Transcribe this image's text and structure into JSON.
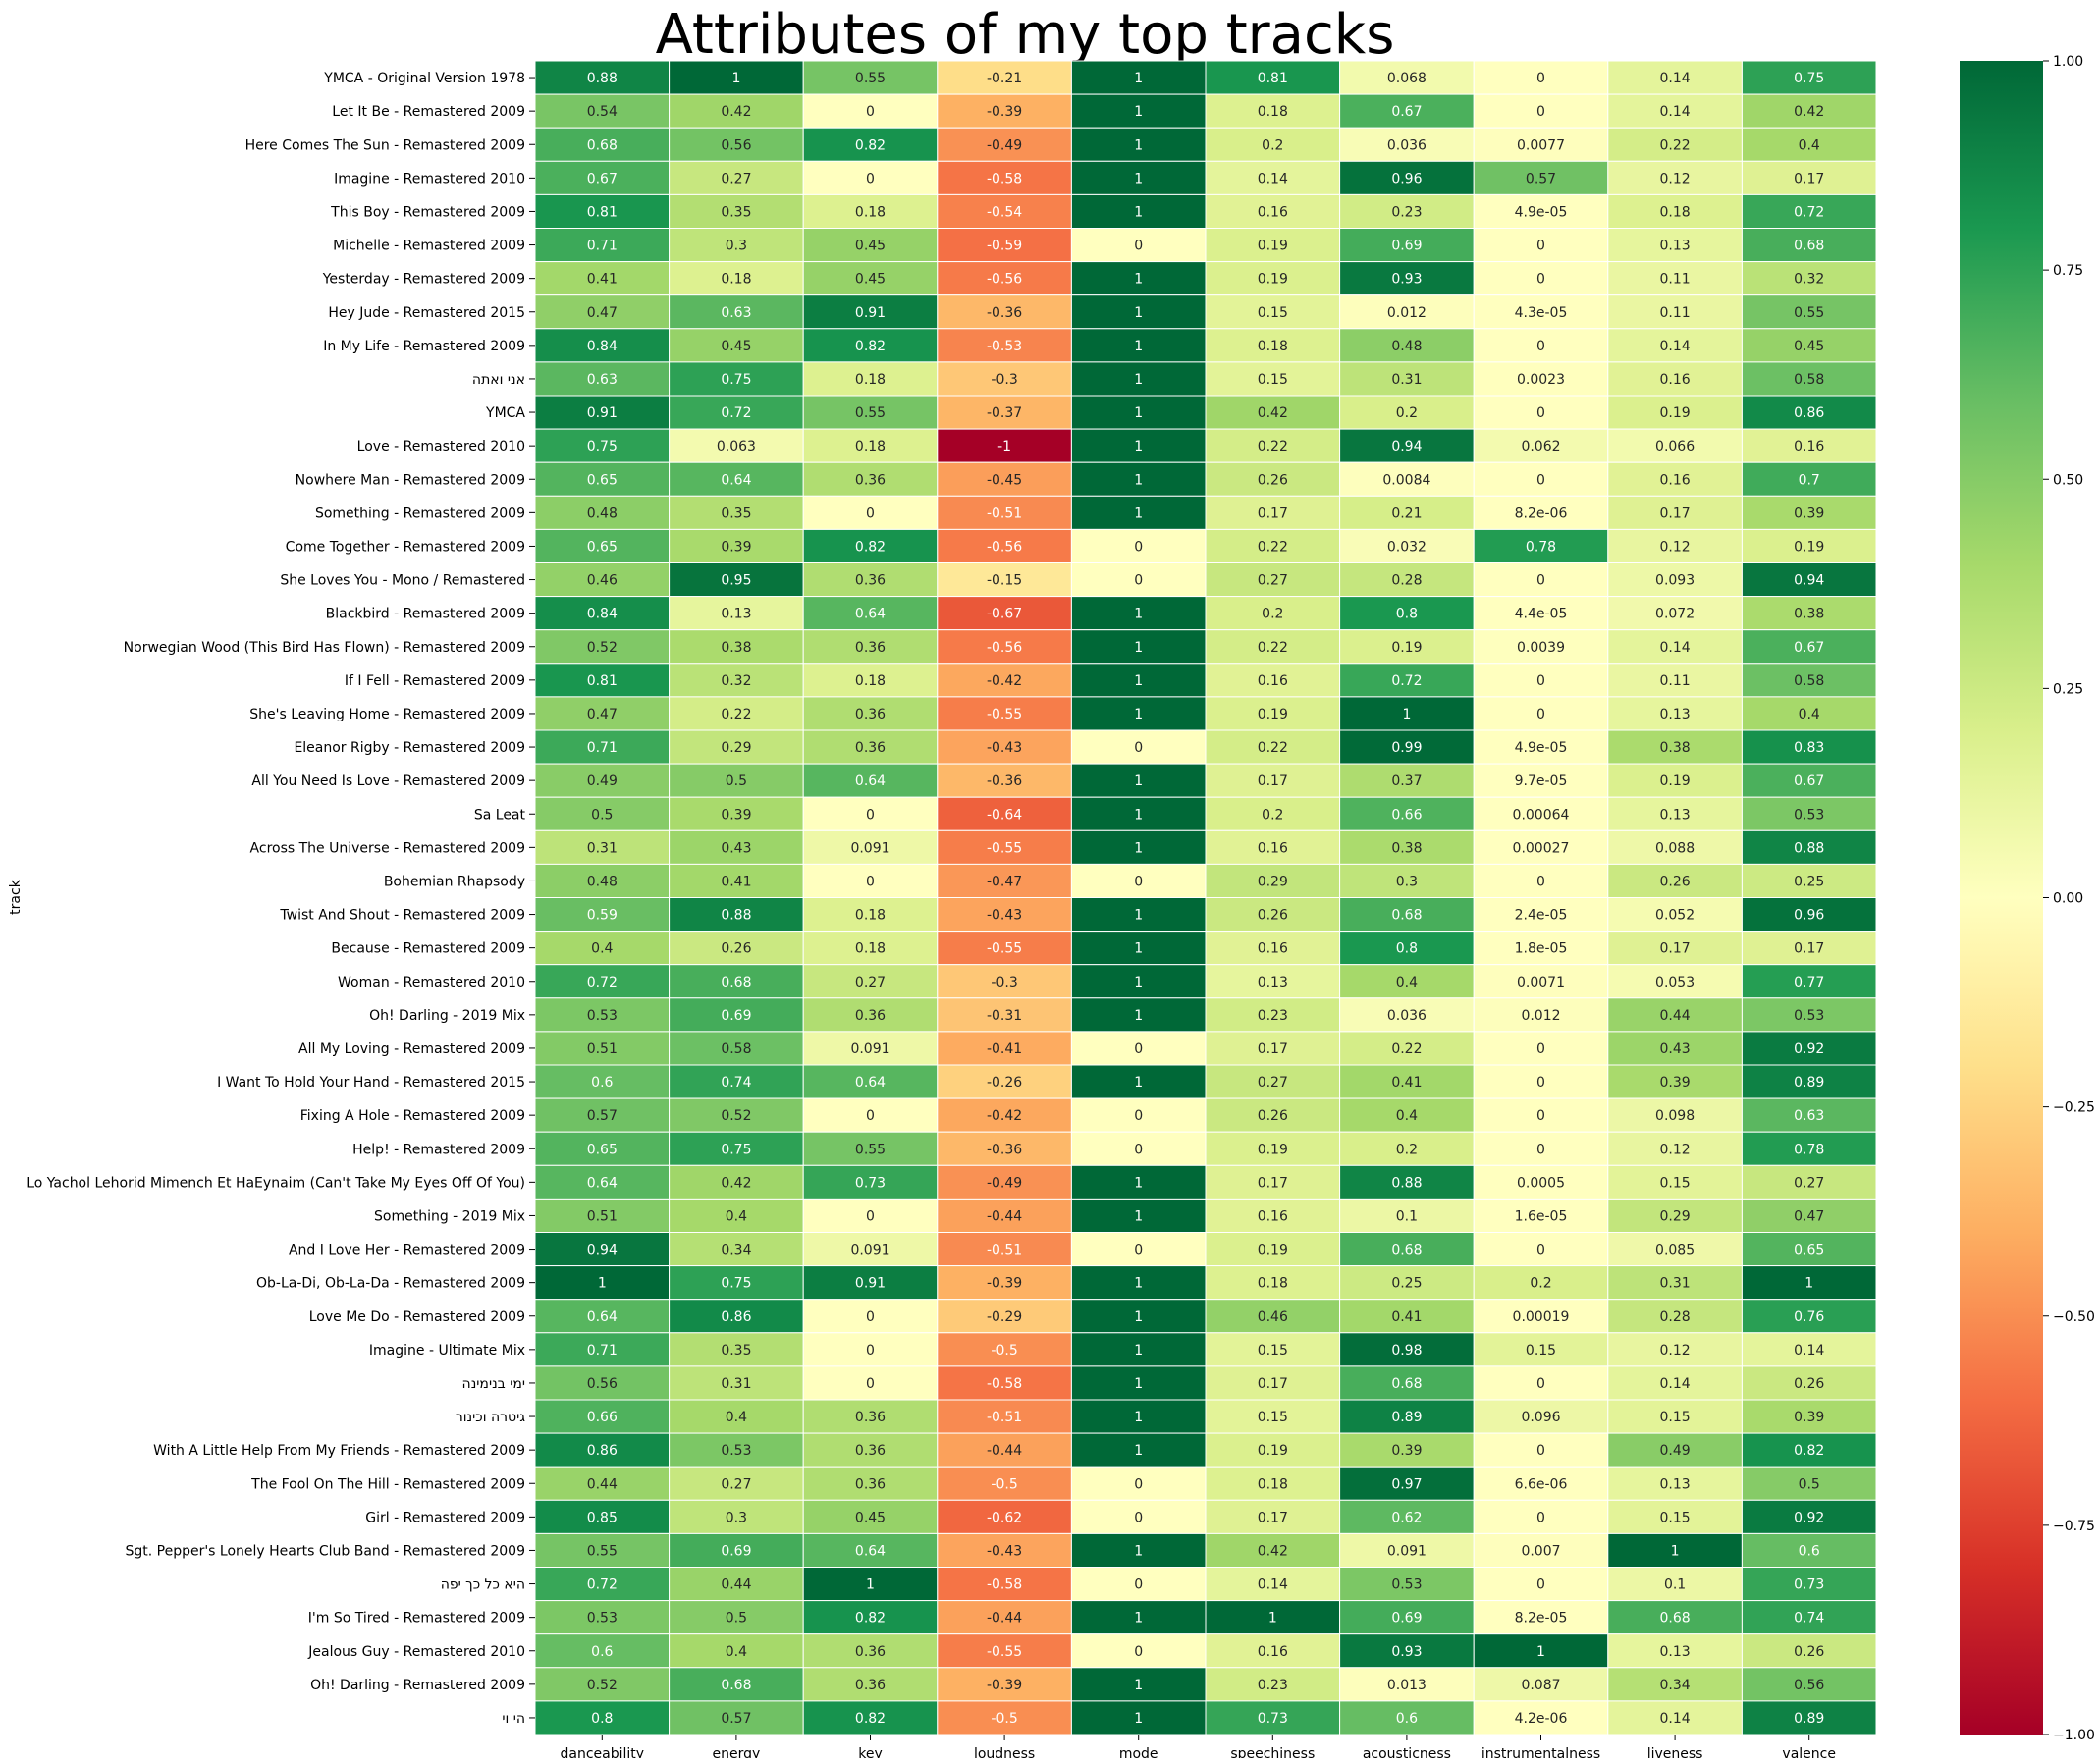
{
  "chart_data": {
    "type": "heatmap",
    "title": "Attributes of my top tracks",
    "ylabel": "track",
    "xlabel": "",
    "value_range": [
      -1,
      1
    ],
    "colormap": "RdYlGn",
    "colorbar_ticks": [
      "1.00",
      "0.75",
      "0.50",
      "0.25",
      "0.00",
      "−0.25",
      "−0.50",
      "−0.75",
      "−1.00"
    ],
    "colorbar_tick_values": [
      1,
      0.75,
      0.5,
      0.25,
      0,
      -0.25,
      -0.5,
      -0.75,
      -1
    ],
    "columns": [
      "danceability",
      "energy",
      "key",
      "loudness",
      "mode",
      "speechiness",
      "acousticness",
      "instrumentalness",
      "liveness",
      "valence"
    ],
    "rows": [
      {
        "track": "YMCA - Original Version 1978",
        "values": [
          "0.88",
          "1",
          "0.55",
          "-0.21",
          "1",
          "0.81",
          "0.068",
          "0",
          "0.14",
          "0.75"
        ]
      },
      {
        "track": "Let It Be - Remastered 2009",
        "values": [
          "0.54",
          "0.42",
          "0",
          "-0.39",
          "1",
          "0.18",
          "0.67",
          "0",
          "0.14",
          "0.42"
        ]
      },
      {
        "track": "Here Comes The Sun - Remastered 2009",
        "values": [
          "0.68",
          "0.56",
          "0.82",
          "-0.49",
          "1",
          "0.2",
          "0.036",
          "0.0077",
          "0.22",
          "0.4"
        ]
      },
      {
        "track": "Imagine - Remastered 2010",
        "values": [
          "0.67",
          "0.27",
          "0",
          "-0.58",
          "1",
          "0.14",
          "0.96",
          "0.57",
          "0.12",
          "0.17"
        ]
      },
      {
        "track": "This Boy - Remastered 2009",
        "values": [
          "0.81",
          "0.35",
          "0.18",
          "-0.54",
          "1",
          "0.16",
          "0.23",
          "4.9e-05",
          "0.18",
          "0.72"
        ]
      },
      {
        "track": "Michelle - Remastered 2009",
        "values": [
          "0.71",
          "0.3",
          "0.45",
          "-0.59",
          "0",
          "0.19",
          "0.69",
          "0",
          "0.13",
          "0.68"
        ]
      },
      {
        "track": "Yesterday - Remastered 2009",
        "values": [
          "0.41",
          "0.18",
          "0.45",
          "-0.56",
          "1",
          "0.19",
          "0.93",
          "0",
          "0.11",
          "0.32"
        ]
      },
      {
        "track": "Hey Jude - Remastered 2015",
        "values": [
          "0.47",
          "0.63",
          "0.91",
          "-0.36",
          "1",
          "0.15",
          "0.012",
          "4.3e-05",
          "0.11",
          "0.55"
        ]
      },
      {
        "track": "In My Life - Remastered 2009",
        "values": [
          "0.84",
          "0.45",
          "0.82",
          "-0.53",
          "1",
          "0.18",
          "0.48",
          "0",
          "0.14",
          "0.45"
        ]
      },
      {
        "track": "אני ואתה",
        "values": [
          "0.63",
          "0.75",
          "0.18",
          "-0.3",
          "1",
          "0.15",
          "0.31",
          "0.0023",
          "0.16",
          "0.58"
        ]
      },
      {
        "track": "YMCA",
        "values": [
          "0.91",
          "0.72",
          "0.55",
          "-0.37",
          "1",
          "0.42",
          "0.2",
          "0",
          "0.19",
          "0.86"
        ]
      },
      {
        "track": "Love - Remastered 2010",
        "values": [
          "0.75",
          "0.063",
          "0.18",
          "-1",
          "1",
          "0.22",
          "0.94",
          "0.062",
          "0.066",
          "0.16"
        ]
      },
      {
        "track": "Nowhere Man - Remastered 2009",
        "values": [
          "0.65",
          "0.64",
          "0.36",
          "-0.45",
          "1",
          "0.26",
          "0.0084",
          "0",
          "0.16",
          "0.7"
        ]
      },
      {
        "track": "Something - Remastered 2009",
        "values": [
          "0.48",
          "0.35",
          "0",
          "-0.51",
          "1",
          "0.17",
          "0.21",
          "8.2e-06",
          "0.17",
          "0.39"
        ]
      },
      {
        "track": "Come Together - Remastered 2009",
        "values": [
          "0.65",
          "0.39",
          "0.82",
          "-0.56",
          "0",
          "0.22",
          "0.032",
          "0.78",
          "0.12",
          "0.19"
        ]
      },
      {
        "track": "She Loves You - Mono / Remastered",
        "values": [
          "0.46",
          "0.95",
          "0.36",
          "-0.15",
          "0",
          "0.27",
          "0.28",
          "0",
          "0.093",
          "0.94"
        ]
      },
      {
        "track": "Blackbird - Remastered 2009",
        "values": [
          "0.84",
          "0.13",
          "0.64",
          "-0.67",
          "1",
          "0.2",
          "0.8",
          "4.4e-05",
          "0.072",
          "0.38"
        ]
      },
      {
        "track": "Norwegian Wood (This Bird Has Flown) - Remastered 2009",
        "values": [
          "0.52",
          "0.38",
          "0.36",
          "-0.56",
          "1",
          "0.22",
          "0.19",
          "0.0039",
          "0.14",
          "0.67"
        ]
      },
      {
        "track": "If I Fell - Remastered 2009",
        "values": [
          "0.81",
          "0.32",
          "0.18",
          "-0.42",
          "1",
          "0.16",
          "0.72",
          "0",
          "0.11",
          "0.58"
        ]
      },
      {
        "track": "She's Leaving Home - Remastered 2009",
        "values": [
          "0.47",
          "0.22",
          "0.36",
          "-0.55",
          "1",
          "0.19",
          "1",
          "0",
          "0.13",
          "0.4"
        ]
      },
      {
        "track": "Eleanor Rigby - Remastered 2009",
        "values": [
          "0.71",
          "0.29",
          "0.36",
          "-0.43",
          "0",
          "0.22",
          "0.99",
          "4.9e-05",
          "0.38",
          "0.83"
        ]
      },
      {
        "track": "All You Need Is Love - Remastered 2009",
        "values": [
          "0.49",
          "0.5",
          "0.64",
          "-0.36",
          "1",
          "0.17",
          "0.37",
          "9.7e-05",
          "0.19",
          "0.67"
        ]
      },
      {
        "track": "Sa Leat",
        "values": [
          "0.5",
          "0.39",
          "0",
          "-0.64",
          "1",
          "0.2",
          "0.66",
          "0.00064",
          "0.13",
          "0.53"
        ]
      },
      {
        "track": "Across The Universe - Remastered 2009",
        "values": [
          "0.31",
          "0.43",
          "0.091",
          "-0.55",
          "1",
          "0.16",
          "0.38",
          "0.00027",
          "0.088",
          "0.88"
        ]
      },
      {
        "track": "Bohemian Rhapsody",
        "values": [
          "0.48",
          "0.41",
          "0",
          "-0.47",
          "0",
          "0.29",
          "0.3",
          "0",
          "0.26",
          "0.25"
        ]
      },
      {
        "track": "Twist And Shout - Remastered 2009",
        "values": [
          "0.59",
          "0.88",
          "0.18",
          "-0.43",
          "1",
          "0.26",
          "0.68",
          "2.4e-05",
          "0.052",
          "0.96"
        ]
      },
      {
        "track": "Because - Remastered 2009",
        "values": [
          "0.4",
          "0.26",
          "0.18",
          "-0.55",
          "1",
          "0.16",
          "0.8",
          "1.8e-05",
          "0.17",
          "0.17"
        ]
      },
      {
        "track": "Woman - Remastered 2010",
        "values": [
          "0.72",
          "0.68",
          "0.27",
          "-0.3",
          "1",
          "0.13",
          "0.4",
          "0.0071",
          "0.053",
          "0.77"
        ]
      },
      {
        "track": "Oh! Darling - 2019 Mix",
        "values": [
          "0.53",
          "0.69",
          "0.36",
          "-0.31",
          "1",
          "0.23",
          "0.036",
          "0.012",
          "0.44",
          "0.53"
        ]
      },
      {
        "track": "All My Loving - Remastered 2009",
        "values": [
          "0.51",
          "0.58",
          "0.091",
          "-0.41",
          "0",
          "0.17",
          "0.22",
          "0",
          "0.43",
          "0.92"
        ]
      },
      {
        "track": "I Want To Hold Your Hand - Remastered 2015",
        "values": [
          "0.6",
          "0.74",
          "0.64",
          "-0.26",
          "1",
          "0.27",
          "0.41",
          "0",
          "0.39",
          "0.89"
        ]
      },
      {
        "track": "Fixing A Hole - Remastered 2009",
        "values": [
          "0.57",
          "0.52",
          "0",
          "-0.42",
          "0",
          "0.26",
          "0.4",
          "0",
          "0.098",
          "0.63"
        ]
      },
      {
        "track": "Help! - Remastered 2009",
        "values": [
          "0.65",
          "0.75",
          "0.55",
          "-0.36",
          "0",
          "0.19",
          "0.2",
          "0",
          "0.12",
          "0.78"
        ]
      },
      {
        "track": "Lo Yachol Lehorid Mimench Et HaEynaim (Can't Take My Eyes Off Of You)",
        "values": [
          "0.64",
          "0.42",
          "0.73",
          "-0.49",
          "1",
          "0.17",
          "0.88",
          "0.0005",
          "0.15",
          "0.27"
        ]
      },
      {
        "track": "Something - 2019 Mix",
        "values": [
          "0.51",
          "0.4",
          "0",
          "-0.44",
          "1",
          "0.16",
          "0.1",
          "1.6e-05",
          "0.29",
          "0.47"
        ]
      },
      {
        "track": "And I Love Her - Remastered 2009",
        "values": [
          "0.94",
          "0.34",
          "0.091",
          "-0.51",
          "0",
          "0.19",
          "0.68",
          "0",
          "0.085",
          "0.65"
        ]
      },
      {
        "track": "Ob-La-Di, Ob-La-Da - Remastered 2009",
        "values": [
          "1",
          "0.75",
          "0.91",
          "-0.39",
          "1",
          "0.18",
          "0.25",
          "0.2",
          "0.31",
          "1"
        ]
      },
      {
        "track": "Love Me Do - Remastered 2009",
        "values": [
          "0.64",
          "0.86",
          "0",
          "-0.29",
          "1",
          "0.46",
          "0.41",
          "0.00019",
          "0.28",
          "0.76"
        ]
      },
      {
        "track": "Imagine - Ultimate Mix",
        "values": [
          "0.71",
          "0.35",
          "0",
          "-0.5",
          "1",
          "0.15",
          "0.98",
          "0.15",
          "0.12",
          "0.14"
        ]
      },
      {
        "track": "ימי בנימינה",
        "values": [
          "0.56",
          "0.31",
          "0",
          "-0.58",
          "1",
          "0.17",
          "0.68",
          "0",
          "0.14",
          "0.26"
        ]
      },
      {
        "track": "גיטרה וכינור",
        "values": [
          "0.66",
          "0.4",
          "0.36",
          "-0.51",
          "1",
          "0.15",
          "0.89",
          "0.096",
          "0.15",
          "0.39"
        ]
      },
      {
        "track": "With A Little Help From My Friends - Remastered 2009",
        "values": [
          "0.86",
          "0.53",
          "0.36",
          "-0.44",
          "1",
          "0.19",
          "0.39",
          "0",
          "0.49",
          "0.82"
        ]
      },
      {
        "track": "The Fool On The Hill - Remastered 2009",
        "values": [
          "0.44",
          "0.27",
          "0.36",
          "-0.5",
          "0",
          "0.18",
          "0.97",
          "6.6e-06",
          "0.13",
          "0.5"
        ]
      },
      {
        "track": "Girl - Remastered 2009",
        "values": [
          "0.85",
          "0.3",
          "0.45",
          "-0.62",
          "0",
          "0.17",
          "0.62",
          "0",
          "0.15",
          "0.92"
        ]
      },
      {
        "track": "Sgt. Pepper's Lonely Hearts Club Band - Remastered 2009",
        "values": [
          "0.55",
          "0.69",
          "0.64",
          "-0.43",
          "1",
          "0.42",
          "0.091",
          "0.007",
          "1",
          "0.6"
        ]
      },
      {
        "track": "היא כל כך יפה",
        "values": [
          "0.72",
          "0.44",
          "1",
          "-0.58",
          "0",
          "0.14",
          "0.53",
          "0",
          "0.1",
          "0.73"
        ]
      },
      {
        "track": "I'm So Tired - Remastered 2009",
        "values": [
          "0.53",
          "0.5",
          "0.82",
          "-0.44",
          "1",
          "1",
          "0.69",
          "8.2e-05",
          "0.68",
          "0.74"
        ]
      },
      {
        "track": "Jealous Guy - Remastered 2010",
        "values": [
          "0.6",
          "0.4",
          "0.36",
          "-0.55",
          "0",
          "0.16",
          "0.93",
          "1",
          "0.13",
          "0.26"
        ]
      },
      {
        "track": "Oh! Darling - Remastered 2009",
        "values": [
          "0.52",
          "0.68",
          "0.36",
          "-0.39",
          "1",
          "0.23",
          "0.013",
          "0.087",
          "0.34",
          "0.56"
        ]
      },
      {
        "track": "הי וי",
        "values": [
          "0.8",
          "0.57",
          "0.82",
          "-0.5",
          "1",
          "0.73",
          "0.6",
          "4.2e-06",
          "0.14",
          "0.89"
        ]
      }
    ]
  }
}
